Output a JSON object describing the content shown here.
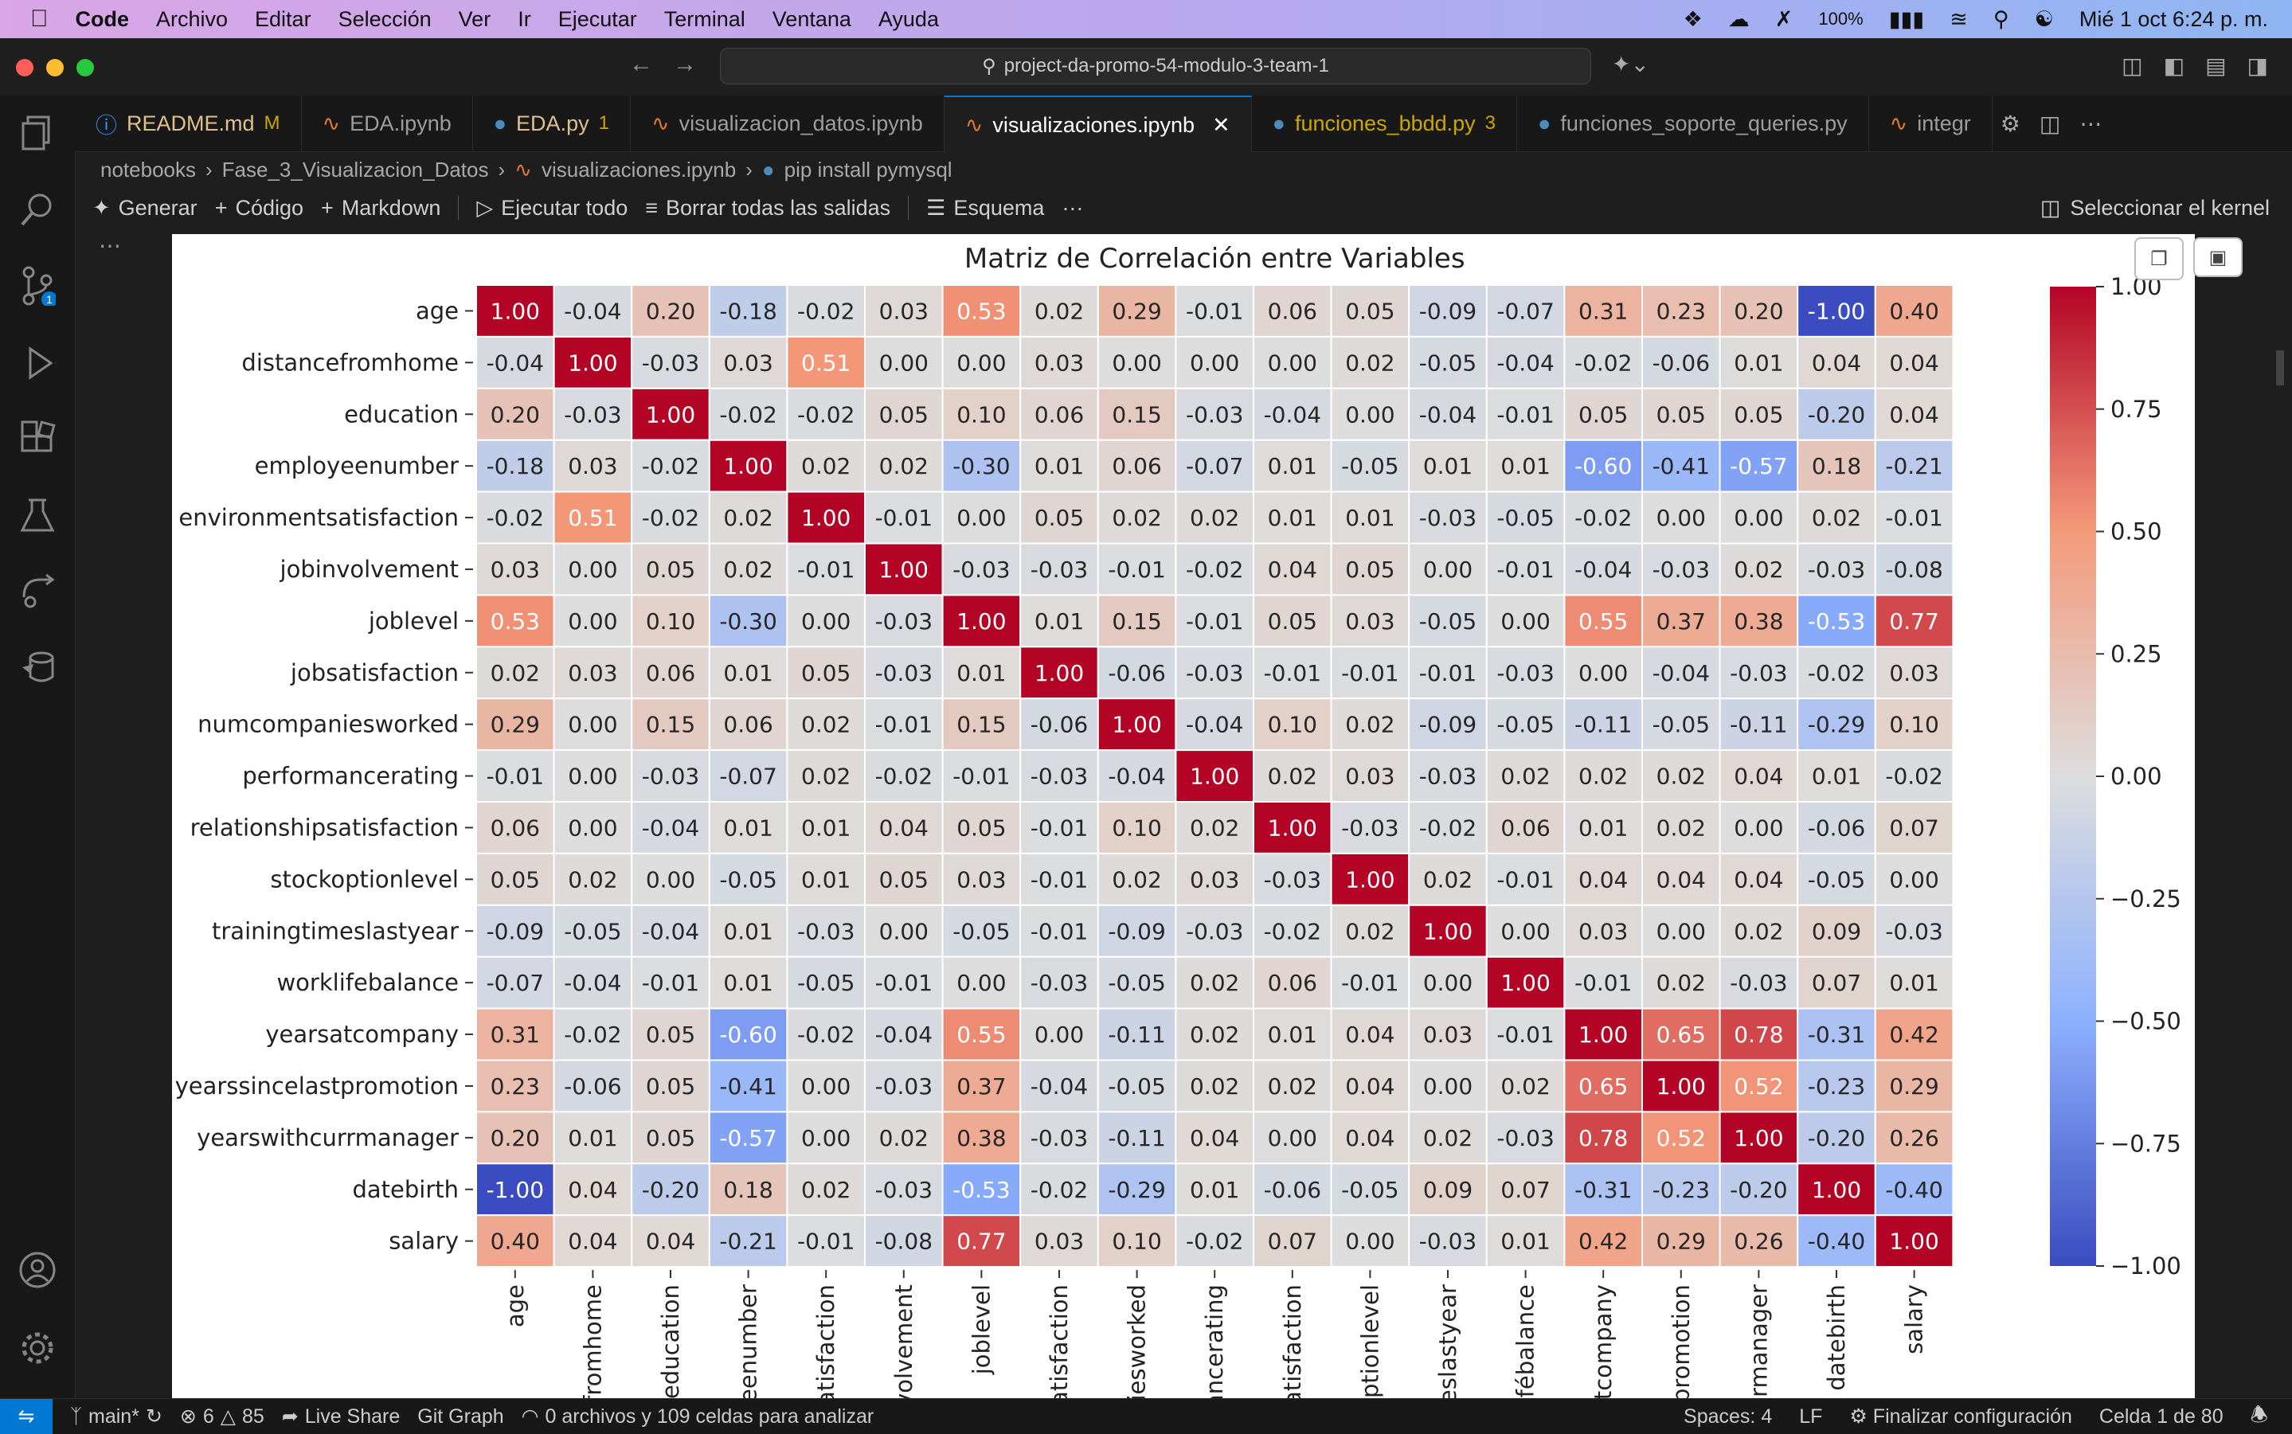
{
  "menubar": {
    "app": "Code",
    "items": [
      "Archivo",
      "Editar",
      "Selección",
      "Ver",
      "Ir",
      "Ejecutar",
      "Terminal",
      "Ventana",
      "Ayuda"
    ],
    "battery": "100%",
    "datetime": "Mié 1 oct  6:24 p. m."
  },
  "window": {
    "search": "project-da-promo-54-modulo-3-team-1"
  },
  "tabs": [
    {
      "label": "README.md",
      "badge": "M",
      "icon": "info-icon",
      "color": "#e2c08d"
    },
    {
      "label": "EDA.ipynb",
      "badge": "",
      "icon": "notebook-icon",
      "color": "#9d9d9d"
    },
    {
      "label": "EDA.py",
      "badge": "1",
      "icon": "python-icon",
      "color": "#e2c08d"
    },
    {
      "label": "visualizacion_datos.ipynb",
      "badge": "",
      "icon": "notebook-icon",
      "color": "#9d9d9d"
    },
    {
      "label": "visualizaciones.ipynb",
      "badge": "",
      "icon": "notebook-icon",
      "color": "#ffffff",
      "active": true
    },
    {
      "label": "funciones_bbdd.py",
      "badge": "3",
      "icon": "python-icon",
      "color": "#cca700"
    },
    {
      "label": "funciones_soporte_queries.py",
      "badge": "",
      "icon": "python-icon",
      "color": "#9d9d9d"
    },
    {
      "label": "integr",
      "badge": "",
      "icon": "notebook-icon",
      "color": "#9d9d9d"
    }
  ],
  "breadcrumb": [
    "notebooks",
    "Fase_3_Visualizacion_Datos",
    "visualizaciones.ipynb",
    "pip install pymysql"
  ],
  "toolbar": {
    "generate": "Generar",
    "code": "Código",
    "markdown": "Markdown",
    "run_all": "Ejecutar todo",
    "clear": "Borrar todas las salidas",
    "outline": "Esquema",
    "more": "···",
    "kernel": "Seleccionar el kernel"
  },
  "statusbar": {
    "branch": "main*",
    "errors": "6",
    "warnings": "85",
    "live_share": "Live Share",
    "git_graph": "Git Graph",
    "analysis": "0 archivos y 109 celdas para analizar",
    "spaces": "Spaces: 4",
    "eol": "LF",
    "config": "Finalizar configuración",
    "cell": "Celda 1 de 80"
  },
  "chart_data": {
    "type": "heatmap",
    "title": "Matriz de Correlación entre Variables",
    "row_labels": [
      "age",
      "distancefromhome",
      "education",
      "employeenumber",
      "environmentsatisfaction",
      "jobinvolvement",
      "joblevel",
      "jobsatisfaction",
      "numcompaniesworked",
      "performancerating",
      "relationshipsatisfaction",
      "stockoptionlevel",
      "trainingtimeslastyear",
      "worklifebalance",
      "yearsatcompany",
      "yearssincelastpromotion",
      "yearswithcurrmanager",
      "datebirth",
      "salary"
    ],
    "col_labels": [
      "age",
      "fromhome",
      "education",
      "eenumber",
      "atisfaction",
      "volvement",
      "joblevel",
      "atisfaction",
      "iesworked",
      "ancerating",
      "atisfaction",
      "optionlevel",
      "eslastyear",
      "fébalance",
      "tcompany",
      "promotion",
      "rmanager",
      "datebirth",
      "salary"
    ],
    "matrix": [
      [
        1.0,
        -0.04,
        0.2,
        -0.18,
        -0.02,
        0.03,
        0.53,
        0.02,
        0.29,
        -0.01,
        0.06,
        0.05,
        -0.09,
        -0.07,
        0.31,
        0.23,
        0.2,
        -1.0,
        0.4
      ],
      [
        -0.04,
        1.0,
        -0.03,
        0.03,
        0.51,
        -0.0,
        -0.0,
        0.03,
        0.0,
        -0.0,
        -0.0,
        0.02,
        -0.05,
        -0.04,
        -0.02,
        -0.06,
        0.01,
        0.04,
        0.04
      ],
      [
        0.2,
        -0.03,
        1.0,
        -0.02,
        -0.02,
        0.05,
        0.1,
        0.06,
        0.15,
        -0.03,
        -0.04,
        0.0,
        -0.04,
        -0.01,
        0.05,
        0.05,
        0.05,
        -0.2,
        0.04
      ],
      [
        -0.18,
        0.03,
        -0.02,
        1.0,
        0.02,
        0.02,
        -0.3,
        0.01,
        0.06,
        -0.07,
        0.01,
        -0.05,
        0.01,
        0.01,
        -0.6,
        -0.41,
        -0.57,
        0.18,
        -0.21
      ],
      [
        -0.02,
        0.51,
        -0.02,
        0.02,
        1.0,
        -0.01,
        -0.0,
        0.05,
        0.02,
        0.02,
        0.01,
        0.01,
        -0.03,
        -0.05,
        -0.02,
        -0.0,
        -0.0,
        0.02,
        -0.01
      ],
      [
        0.03,
        -0.0,
        0.05,
        0.02,
        -0.01,
        1.0,
        -0.03,
        -0.03,
        -0.01,
        -0.02,
        0.04,
        0.05,
        -0.0,
        -0.01,
        -0.04,
        -0.03,
        0.02,
        -0.03,
        -0.08
      ],
      [
        0.53,
        -0.0,
        0.1,
        -0.3,
        -0.0,
        -0.03,
        1.0,
        0.01,
        0.15,
        -0.01,
        0.05,
        0.03,
        -0.05,
        0.0,
        0.55,
        0.37,
        0.38,
        -0.53,
        0.77
      ],
      [
        0.02,
        0.03,
        0.06,
        0.01,
        0.05,
        -0.03,
        0.01,
        1.0,
        -0.06,
        -0.03,
        -0.01,
        -0.01,
        -0.01,
        -0.03,
        0.0,
        -0.04,
        -0.03,
        -0.02,
        0.03
      ],
      [
        0.29,
        0.0,
        0.15,
        0.06,
        0.02,
        -0.01,
        0.15,
        -0.06,
        1.0,
        -0.04,
        0.1,
        0.02,
        -0.09,
        -0.05,
        -0.11,
        -0.05,
        -0.11,
        -0.29,
        0.1
      ],
      [
        -0.01,
        -0.0,
        -0.03,
        -0.07,
        0.02,
        -0.02,
        -0.01,
        -0.03,
        -0.04,
        1.0,
        0.02,
        0.03,
        -0.03,
        0.02,
        0.02,
        0.02,
        0.04,
        0.01,
        -0.02
      ],
      [
        0.06,
        -0.0,
        -0.04,
        0.01,
        0.01,
        0.04,
        0.05,
        -0.01,
        0.1,
        0.02,
        1.0,
        -0.03,
        -0.02,
        0.06,
        0.01,
        0.02,
        -0.0,
        -0.06,
        0.07
      ],
      [
        0.05,
        0.02,
        0.0,
        -0.05,
        0.01,
        0.05,
        0.03,
        -0.01,
        0.02,
        0.03,
        -0.03,
        1.0,
        0.02,
        -0.01,
        0.04,
        0.04,
        0.04,
        -0.05,
        -0.0
      ],
      [
        -0.09,
        -0.05,
        -0.04,
        0.01,
        -0.03,
        -0.0,
        -0.05,
        -0.01,
        -0.09,
        -0.03,
        -0.02,
        0.02,
        1.0,
        0.0,
        0.03,
        -0.0,
        0.02,
        0.09,
        -0.03
      ],
      [
        -0.07,
        -0.04,
        -0.01,
        0.01,
        -0.05,
        -0.01,
        0.0,
        -0.03,
        -0.05,
        0.02,
        0.06,
        -0.01,
        0.0,
        1.0,
        -0.01,
        0.02,
        -0.03,
        0.07,
        0.01
      ],
      [
        0.31,
        -0.02,
        0.05,
        -0.6,
        -0.02,
        -0.04,
        0.55,
        0.0,
        -0.11,
        0.02,
        0.01,
        0.04,
        0.03,
        -0.01,
        1.0,
        0.65,
        0.78,
        -0.31,
        0.42
      ],
      [
        0.23,
        -0.06,
        0.05,
        -0.41,
        -0.0,
        -0.03,
        0.37,
        -0.04,
        -0.05,
        0.02,
        0.02,
        0.04,
        -0.0,
        0.02,
        0.65,
        1.0,
        0.52,
        -0.23,
        0.29
      ],
      [
        0.2,
        0.01,
        0.05,
        -0.57,
        -0.0,
        0.02,
        0.38,
        -0.03,
        -0.11,
        0.04,
        -0.0,
        0.04,
        0.02,
        -0.03,
        0.78,
        0.52,
        1.0,
        -0.2,
        0.26
      ],
      [
        -1.0,
        0.04,
        -0.2,
        0.18,
        0.02,
        -0.03,
        -0.53,
        -0.02,
        -0.29,
        0.01,
        -0.06,
        -0.05,
        0.09,
        0.07,
        -0.31,
        -0.23,
        -0.2,
        1.0,
        -0.4
      ],
      [
        0.4,
        0.04,
        0.04,
        -0.21,
        -0.01,
        -0.08,
        0.77,
        0.03,
        0.1,
        -0.02,
        0.07,
        -0.0,
        -0.03,
        0.01,
        0.42,
        0.29,
        0.26,
        -0.4,
        1.0
      ]
    ],
    "vmin": -1.0,
    "vmax": 1.0,
    "colormap": "coolwarm",
    "colorbar_ticks": [
      "1.00",
      "0.75",
      "0.50",
      "0.25",
      "0.00",
      "−0.25",
      "−0.50",
      "−0.75",
      "−1.00"
    ]
  }
}
